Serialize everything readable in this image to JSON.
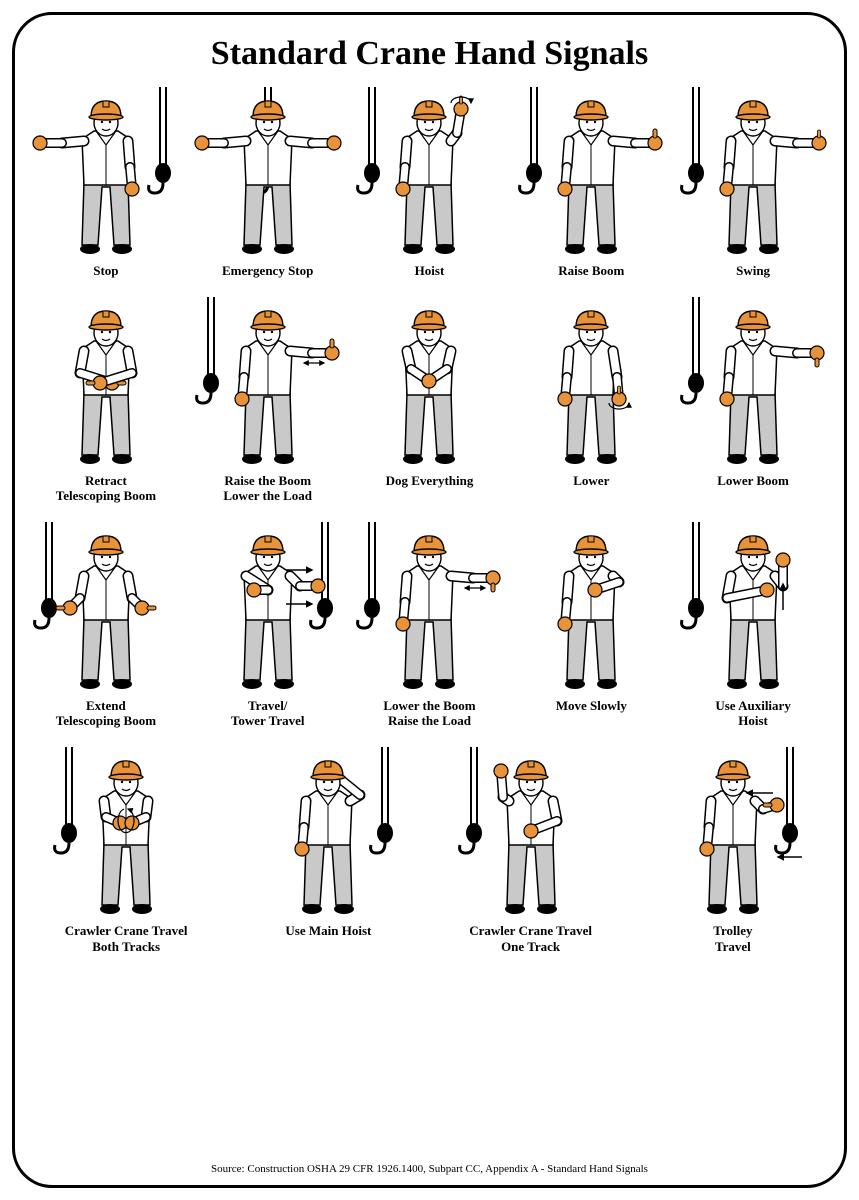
{
  "title": "Standard Crane Hand Signals",
  "title_fontsize": 34,
  "label_fontsize": 13,
  "source": "Source: Construction OSHA 29 CFR 1926.1400, Subpart CC, Appendix A - Standard Hand Signals",
  "source_fontsize": 11,
  "type": "infographic",
  "background_color": "#ffffff",
  "border_color": "#000000",
  "border_radius": 40,
  "colors": {
    "outline": "#000000",
    "skin": "#ffffff",
    "shirt": "#ffffff",
    "pants": "#c9c9c9",
    "shoes": "#000000",
    "hardhat": "#e8933a",
    "gloves": "#e8933a",
    "hook": "#000000"
  },
  "rows": [
    {
      "cols": 5,
      "items": [
        {
          "label": "Stop",
          "hook_side": "right",
          "arm_l": "extended-side",
          "arm_r": "down"
        },
        {
          "label": "Emergency Stop",
          "hook_side": "center",
          "arm_l": "extended-side",
          "arm_r": "extended-side"
        },
        {
          "label": "Hoist",
          "hook_side": "left",
          "arm_l": "down",
          "arm_r": "up-finger-circle"
        },
        {
          "label": "Raise Boom",
          "hook_side": "left",
          "arm_l": "down",
          "arm_r": "extended-thumb-up"
        },
        {
          "label": "Swing",
          "hook_side": "left",
          "arm_l": "down",
          "arm_r": "extended-point"
        }
      ]
    },
    {
      "cols": 5,
      "items": [
        {
          "label": "Retract\nTelescoping Boom",
          "hook_side": "none",
          "arm_l": "waist-thumb-in",
          "arm_r": "waist-thumb-in"
        },
        {
          "label": "Raise the Boom\nLower the Load",
          "hook_side": "left",
          "arm_l": "down",
          "arm_r": "extended-thumb-up-flex"
        },
        {
          "label": "Dog Everything",
          "hook_side": "none",
          "arm_l": "clasped-front",
          "arm_r": "clasped-front"
        },
        {
          "label": "Lower",
          "hook_side": "none",
          "arm_l": "down",
          "arm_r": "down-finger-circle"
        },
        {
          "label": "Lower Boom",
          "hook_side": "left",
          "arm_l": "down",
          "arm_r": "extended-thumb-down"
        }
      ]
    },
    {
      "cols": 5,
      "items": [
        {
          "label": "Extend\nTelescoping Boom",
          "hook_side": "left",
          "arm_l": "waist-thumb-out",
          "arm_r": "waist-thumb-out"
        },
        {
          "label": "Travel/\nTower Travel",
          "hook_side": "right",
          "arm_l": "across-chest",
          "arm_r": "pushing",
          "extra": "arrows-right"
        },
        {
          "label": "Lower the Boom\nRaise the Load",
          "hook_side": "left",
          "arm_l": "down",
          "arm_r": "extended-thumb-down-flex"
        },
        {
          "label": "Move Slowly",
          "hook_side": "none",
          "arm_l": "down",
          "arm_r": "hand-over-hand"
        },
        {
          "label": "Use Auxiliary\nHoist",
          "hook_side": "left",
          "arm_l": "tap-elbow",
          "arm_r": "bent-up",
          "extra": "arrow-up"
        }
      ]
    },
    {
      "cols": 4,
      "items": [
        {
          "label": "Crawler Crane Travel\nBoth Tracks",
          "hook_side": "left",
          "arm_l": "fists-rotate",
          "arm_r": "fists-rotate"
        },
        {
          "label": "Use Main Hoist",
          "hook_side": "right",
          "arm_l": "down",
          "arm_r": "fist-on-head"
        },
        {
          "label": "Crawler Crane Travel\nOne Track",
          "hook_side": "left",
          "arm_l": "fist-up",
          "arm_r": "bent-waist"
        },
        {
          "label": "Trolley\nTravel",
          "hook_side": "right",
          "arm_l": "down",
          "arm_r": "thumb-point-side",
          "extra": "arrows-left"
        }
      ]
    }
  ]
}
